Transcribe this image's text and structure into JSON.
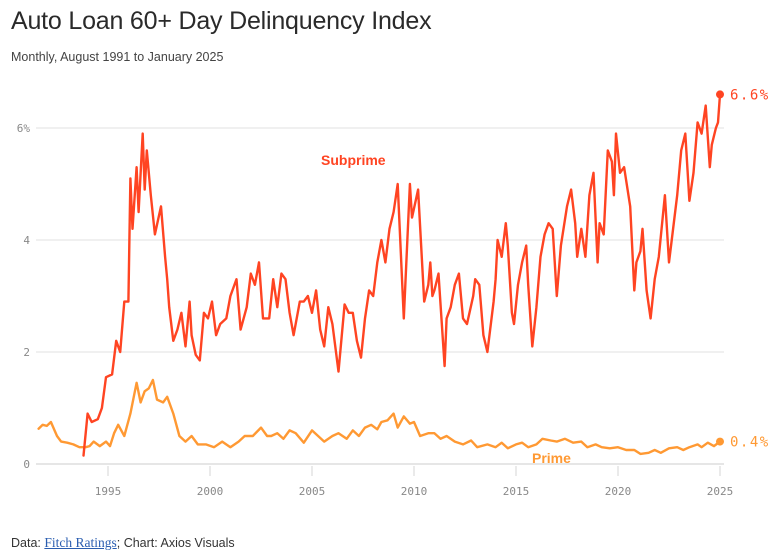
{
  "header": {
    "title": "Auto Loan 60+ Day Delinquency Index",
    "subtitle": "Monthly, August 1991 to January 2025"
  },
  "footer": {
    "data_prefix": "Data: ",
    "source_link": "Fitch Ratings",
    "suffix": "; Chart: Axios Visuals"
  },
  "colors": {
    "subprime": "#ff4422",
    "prime": "#ff9933"
  },
  "chart_data": {
    "type": "line",
    "title": "Auto Loan 60+ Day Delinquency Index",
    "subtitle": "Monthly, August 1991 to January 2025",
    "xlabel": "",
    "ylabel": "",
    "xlim": [
      1991.6,
      2025.1
    ],
    "ylim": [
      0,
      6.6
    ],
    "grid": true,
    "yticks": [
      {
        "value": 0,
        "label": "0"
      },
      {
        "value": 2,
        "label": "2"
      },
      {
        "value": 4,
        "label": "4"
      },
      {
        "value": 6,
        "label": "6%"
      }
    ],
    "xticks": [
      {
        "value": 1995,
        "label": "1995"
      },
      {
        "value": 2000,
        "label": "2000"
      },
      {
        "value": 2005,
        "label": "2005"
      },
      {
        "value": 2010,
        "label": "2010"
      },
      {
        "value": 2015,
        "label": "2015"
      },
      {
        "value": 2020,
        "label": "2020"
      },
      {
        "value": 2025,
        "label": "2025"
      }
    ],
    "series": [
      {
        "name": "Subprime",
        "end_label": "6.6%",
        "x": [
          1993.8,
          1994.0,
          1994.2,
          1994.5,
          1994.7,
          1994.9,
          1995.2,
          1995.4,
          1995.6,
          1995.8,
          1996.0,
          1996.1,
          1996.2,
          1996.4,
          1996.5,
          1996.7,
          1996.8,
          1996.9,
          1997.1,
          1997.3,
          1997.6,
          1997.8,
          1997.9,
          1998.0,
          1998.2,
          1998.4,
          1998.6,
          1998.8,
          1999.0,
          1999.1,
          1999.3,
          1999.5,
          1999.7,
          1999.9,
          2000.1,
          2000.3,
          2000.5,
          2000.8,
          2001.0,
          2001.3,
          2001.5,
          2001.8,
          2002.0,
          2002.2,
          2002.4,
          2002.6,
          2002.9,
          2003.1,
          2003.3,
          2003.5,
          2003.7,
          2003.9,
          2004.1,
          2004.4,
          2004.6,
          2004.8,
          2005.0,
          2005.2,
          2005.4,
          2005.6,
          2005.8,
          2006.0,
          2006.3,
          2006.6,
          2006.8,
          2007.0,
          2007.2,
          2007.4,
          2007.6,
          2007.8,
          2008.0,
          2008.2,
          2008.4,
          2008.6,
          2008.8,
          2009.0,
          2009.2,
          2009.5,
          2009.8,
          2009.9,
          2010.2,
          2010.5,
          2010.7,
          2010.8,
          2010.9,
          2011.0,
          2011.2,
          2011.5,
          2011.6,
          2011.8,
          2012.0,
          2012.2,
          2012.4,
          2012.6,
          2012.9,
          2013.0,
          2013.2,
          2013.4,
          2013.6,
          2013.9,
          2014.0,
          2014.1,
          2014.3,
          2014.5,
          2014.6,
          2014.8,
          2014.9,
          2015.1,
          2015.3,
          2015.5,
          2015.6,
          2015.8,
          2016.0,
          2016.2,
          2016.4,
          2016.6,
          2016.8,
          2017.0,
          2017.2,
          2017.5,
          2017.7,
          2017.9,
          2018.0,
          2018.2,
          2018.4,
          2018.6,
          2018.8,
          2019.0,
          2019.1,
          2019.3,
          2019.5,
          2019.7,
          2019.8,
          2019.9,
          2020.1,
          2020.3,
          2020.6,
          2020.8,
          2020.9,
          2021.1,
          2021.2,
          2021.4,
          2021.6,
          2021.8,
          2022.0,
          2022.3,
          2022.5,
          2022.7,
          2022.9,
          2023.1,
          2023.3,
          2023.5,
          2023.7,
          2023.9,
          2024.1,
          2024.3,
          2024.5,
          2024.6,
          2024.8,
          2024.9,
          2025.0
        ],
        "values": [
          0.15,
          0.9,
          0.75,
          0.8,
          1.0,
          1.55,
          1.6,
          2.2,
          2.0,
          2.9,
          2.9,
          5.1,
          4.2,
          5.3,
          4.5,
          5.9,
          4.9,
          5.6,
          4.8,
          4.1,
          4.6,
          3.7,
          3.3,
          2.8,
          2.2,
          2.4,
          2.7,
          2.1,
          2.9,
          2.3,
          1.95,
          1.85,
          2.7,
          2.6,
          2.9,
          2.3,
          2.5,
          2.6,
          3.0,
          3.3,
          2.4,
          2.8,
          3.4,
          3.2,
          3.6,
          2.6,
          2.6,
          3.3,
          2.8,
          3.4,
          3.3,
          2.7,
          2.3,
          2.9,
          2.9,
          3.0,
          2.7,
          3.1,
          2.4,
          2.1,
          2.8,
          2.5,
          1.65,
          2.85,
          2.7,
          2.7,
          2.2,
          1.9,
          2.6,
          3.1,
          3.0,
          3.6,
          4.0,
          3.6,
          4.2,
          4.5,
          5.0,
          2.6,
          5.0,
          4.4,
          4.9,
          2.9,
          3.2,
          3.6,
          3.0,
          3.1,
          3.4,
          1.75,
          2.6,
          2.8,
          3.2,
          3.4,
          2.6,
          2.5,
          3.0,
          3.3,
          3.2,
          2.3,
          2.0,
          2.9,
          3.3,
          4.0,
          3.7,
          4.3,
          3.9,
          2.7,
          2.5,
          3.2,
          3.6,
          3.9,
          3.2,
          2.1,
          2.8,
          3.7,
          4.1,
          4.3,
          4.2,
          3.0,
          3.9,
          4.6,
          4.9,
          4.3,
          3.7,
          4.2,
          3.7,
          4.8,
          5.2,
          3.6,
          4.3,
          4.1,
          5.6,
          5.4,
          4.8,
          5.9,
          5.2,
          5.3,
          4.6,
          3.1,
          3.6,
          3.8,
          4.2,
          3.1,
          2.6,
          3.3,
          3.7,
          4.8,
          3.6,
          4.2,
          4.8,
          5.6,
          5.9,
          4.7,
          5.2,
          6.1,
          5.9,
          6.4,
          5.3,
          5.7,
          6.0,
          6.1,
          6.6
        ]
      },
      {
        "name": "Prime",
        "end_label": "0.4%",
        "x": [
          1991.6,
          1991.8,
          1992.0,
          1992.2,
          1992.5,
          1992.7,
          1993.0,
          1993.3,
          1993.6,
          1993.9,
          1994.1,
          1994.3,
          1994.6,
          1994.9,
          1995.1,
          1995.3,
          1995.5,
          1995.8,
          1996.1,
          1996.4,
          1996.6,
          1996.8,
          1997.0,
          1997.2,
          1997.4,
          1997.7,
          1997.9,
          1998.2,
          1998.5,
          1998.8,
          1999.1,
          1999.4,
          1999.8,
          2000.2,
          2000.6,
          2001.0,
          2001.4,
          2001.7,
          2002.1,
          2002.5,
          2002.8,
          2003.0,
          2003.3,
          2003.6,
          2003.9,
          2004.2,
          2004.6,
          2005.0,
          2005.3,
          2005.6,
          2006.0,
          2006.3,
          2006.7,
          2007.0,
          2007.3,
          2007.6,
          2007.9,
          2008.2,
          2008.4,
          2008.7,
          2009.0,
          2009.2,
          2009.5,
          2009.8,
          2010.0,
          2010.3,
          2010.7,
          2011.0,
          2011.3,
          2011.6,
          2012.0,
          2012.4,
          2012.8,
          2013.1,
          2013.6,
          2014.0,
          2014.3,
          2014.6,
          2015.0,
          2015.3,
          2015.6,
          2016.0,
          2016.3,
          2016.7,
          2017.0,
          2017.4,
          2017.8,
          2018.2,
          2018.5,
          2018.9,
          2019.2,
          2019.6,
          2020.0,
          2020.4,
          2020.8,
          2021.1,
          2021.5,
          2021.8,
          2022.1,
          2022.5,
          2022.9,
          2023.2,
          2023.5,
          2023.9,
          2024.1,
          2024.4,
          2024.7,
          2025.0
        ],
        "values": [
          0.63,
          0.7,
          0.68,
          0.75,
          0.5,
          0.4,
          0.38,
          0.35,
          0.3,
          0.3,
          0.32,
          0.4,
          0.32,
          0.4,
          0.32,
          0.55,
          0.7,
          0.5,
          0.9,
          1.45,
          1.1,
          1.3,
          1.35,
          1.5,
          1.15,
          1.1,
          1.2,
          0.9,
          0.5,
          0.4,
          0.5,
          0.35,
          0.35,
          0.3,
          0.4,
          0.3,
          0.4,
          0.5,
          0.5,
          0.65,
          0.5,
          0.5,
          0.55,
          0.45,
          0.6,
          0.55,
          0.38,
          0.6,
          0.5,
          0.4,
          0.5,
          0.55,
          0.45,
          0.6,
          0.5,
          0.65,
          0.7,
          0.62,
          0.75,
          0.78,
          0.9,
          0.65,
          0.85,
          0.72,
          0.75,
          0.5,
          0.55,
          0.55,
          0.45,
          0.5,
          0.4,
          0.35,
          0.42,
          0.3,
          0.35,
          0.3,
          0.38,
          0.28,
          0.35,
          0.38,
          0.3,
          0.35,
          0.45,
          0.42,
          0.4,
          0.45,
          0.38,
          0.4,
          0.3,
          0.35,
          0.3,
          0.28,
          0.3,
          0.25,
          0.25,
          0.18,
          0.2,
          0.25,
          0.2,
          0.28,
          0.3,
          0.25,
          0.3,
          0.35,
          0.3,
          0.38,
          0.32,
          0.4
        ]
      }
    ],
    "annotations": [
      {
        "text": "Subprime",
        "series": "Subprime"
      },
      {
        "text": "Prime",
        "series": "Prime"
      }
    ]
  }
}
